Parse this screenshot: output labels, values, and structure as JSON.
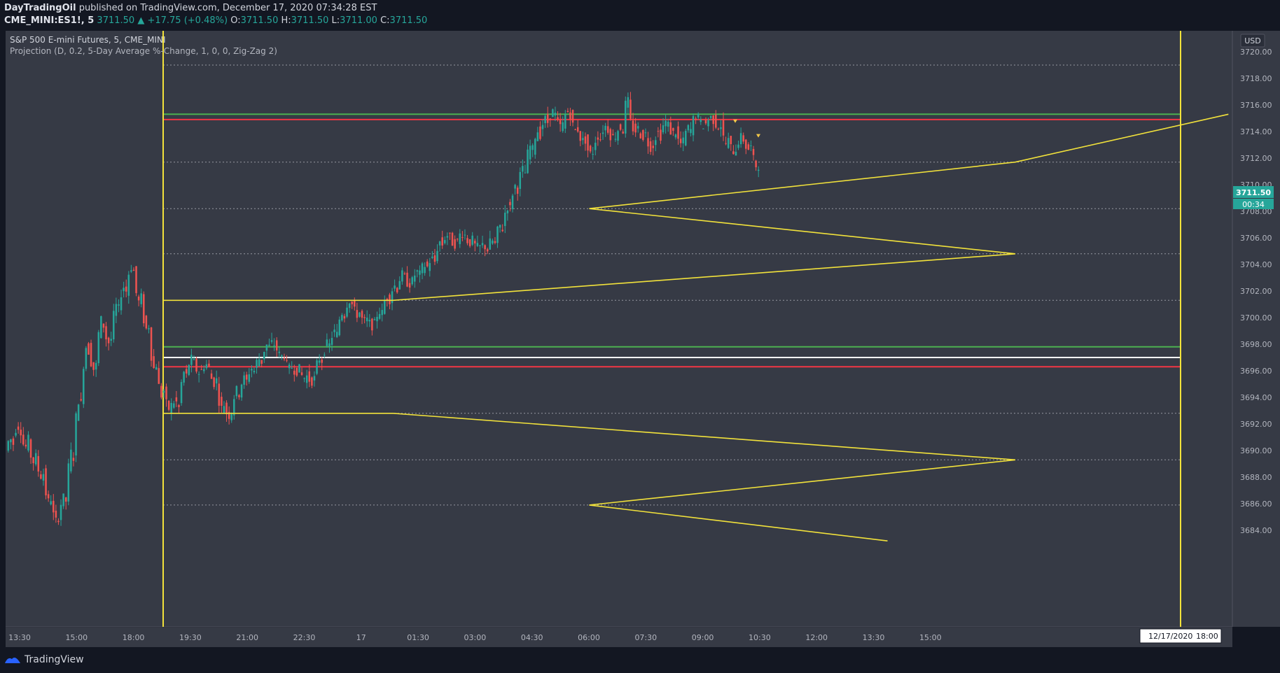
{
  "header": {
    "publisher": "DayTradingOil",
    "published_text": "published on TradingView.com, December 17, 2020 07:34:28 EST",
    "symbol": "CME_MINI:ES1!, 5",
    "last": "3711.50",
    "change": "+17.75 (+0.48%)",
    "o_label": "O:",
    "o_value": "3711.50",
    "h_label": "H:",
    "h_value": "3711.50",
    "l_label": "L:",
    "l_value": "3711.00",
    "c_label": "C:",
    "c_value": "3711.50"
  },
  "legend": {
    "title": "S&P 500 E-mini Futures, 5, CME_MINI",
    "indicator": "Projection (D, 0.2, 5-Day Average %-Change, 1, 0, 0, Zig-Zag 2)"
  },
  "currency": "USD",
  "price_badge": {
    "value": "3711.50",
    "countdown": "00:34"
  },
  "date_badge": {
    "date": "12/17/2020",
    "time": "18:00"
  },
  "footer": {
    "brand": "TradingView"
  },
  "colors": {
    "background": "#363a45",
    "up": "#26a69a",
    "down": "#ef5350",
    "projection": "#f2e23b",
    "green_line": "#4caf50",
    "red_line": "#f23645",
    "white_line": "#ffffff"
  },
  "chart_data": {
    "type": "candlestick",
    "y_ticks": [
      "3720.00",
      "3718.00",
      "3716.00",
      "3714.00",
      "3712.00",
      "3710.00",
      "3708.00",
      "3706.00",
      "3704.00",
      "3702.00",
      "3700.00",
      "3698.00",
      "3696.00",
      "3694.00",
      "3692.00",
      "3690.00",
      "3688.00",
      "3686.00",
      "3684.00"
    ],
    "x_ticks": [
      "13:30",
      "15:00",
      "18:00",
      "19:30",
      "21:00",
      "22:30",
      "17",
      "01:30",
      "03:00",
      "04:30",
      "06:00",
      "07:30",
      "09:00",
      "10:30",
      "12:00",
      "13:30",
      "15:00"
    ],
    "y_range": [
      3683,
      3722
    ],
    "horizontal_levels": {
      "dotted": [
        3719.0,
        3711.7,
        3708.2,
        3704.8,
        3701.3,
        3692.8,
        3689.3,
        3685.9
      ],
      "green": [
        3715.3,
        3697.8
      ],
      "red": [
        3714.9,
        3696.3
      ],
      "white": [
        3697.0
      ]
    },
    "candles_anchor": [
      [
        3690,
        3691,
        3690.5
      ],
      [
        3691,
        3692,
        3691.5
      ],
      [
        3691.5,
        3690,
        3690.8
      ],
      [
        3690.8,
        3689,
        3689.5
      ],
      [
        3689.5,
        3688,
        3688.3
      ],
      [
        3688.3,
        3686,
        3686.4
      ],
      [
        3686.4,
        3684.5,
        3685
      ],
      [
        3685,
        3686.5,
        3686.2
      ],
      [
        3686.2,
        3690,
        3689.5
      ],
      [
        3689.5,
        3694,
        3693.5
      ],
      [
        3693.5,
        3698,
        3697.5
      ],
      [
        3698,
        3696,
        3696.4
      ],
      [
        3696.4,
        3700,
        3699.4
      ],
      [
        3699.4,
        3698,
        3698.4
      ],
      [
        3698.4,
        3701,
        3700.6
      ],
      [
        3700.6,
        3702.5,
        3702
      ],
      [
        3702,
        3704,
        3703.5
      ],
      [
        3703.5,
        3701,
        3701.5
      ],
      [
        3701.5,
        3699,
        3699.4
      ],
      [
        3699.4,
        3696,
        3696.5
      ],
      [
        3696.5,
        3694,
        3694.5
      ],
      [
        3694.5,
        3693,
        3693.4
      ],
      [
        3693.4,
        3693.8,
        3693.2
      ],
      [
        3693.2,
        3696,
        3695.6
      ],
      [
        3695.6,
        3697,
        3696.6
      ],
      [
        3696.6,
        3695.8,
        3696
      ],
      [
        3696,
        3696.6,
        3696.2
      ],
      [
        3696.2,
        3695,
        3695.3
      ],
      [
        3695.3,
        3693,
        3693.5
      ],
      [
        3693.5,
        3692.5,
        3693
      ],
      [
        3693,
        3694.6,
        3694.3
      ],
      [
        3694.3,
        3695.5,
        3695.2
      ],
      [
        3695.2,
        3696.3,
        3696
      ],
      [
        3696,
        3697,
        3696.7
      ],
      [
        3696.7,
        3698,
        3697.8
      ],
      [
        3697.8,
        3698.2,
        3697.6
      ],
      [
        3697.6,
        3697,
        3697.2
      ],
      [
        3697.2,
        3696,
        3696.3
      ],
      [
        3696.3,
        3696,
        3696.1
      ],
      [
        3696.1,
        3695.4,
        3695.6
      ],
      [
        3695.6,
        3695.2,
        3695.4
      ],
      [
        3695.4,
        3697,
        3696.8
      ],
      [
        3696.8,
        3698,
        3697.9
      ],
      [
        3697.9,
        3699,
        3698.7
      ],
      [
        3698.7,
        3700.5,
        3700.2
      ],
      [
        3700.2,
        3701.5,
        3701
      ],
      [
        3701,
        3700.2,
        3700.4
      ],
      [
        3700.4,
        3699.6,
        3699.8
      ],
      [
        3699.8,
        3699.4,
        3699.5
      ],
      [
        3699.5,
        3700.6,
        3700.3
      ],
      [
        3700.3,
        3701.7,
        3701.4
      ],
      [
        3701.4,
        3702.5,
        3702.2
      ],
      [
        3702.2,
        3703.3,
        3703
      ],
      [
        3703,
        3702.5,
        3702.7
      ],
      [
        3702.7,
        3703.5,
        3703.2
      ],
      [
        3703.2,
        3704,
        3703.8
      ],
      [
        3703.8,
        3704.5,
        3704.2
      ],
      [
        3704.2,
        3705.8,
        3705.5
      ],
      [
        3705.5,
        3706.3,
        3706
      ],
      [
        3706,
        3705.5,
        3705.7
      ],
      [
        3705.7,
        3706.5,
        3706.2
      ],
      [
        3706.2,
        3705.6,
        3705.8
      ],
      [
        3705.8,
        3705.2,
        3705.3
      ],
      [
        3705.3,
        3705.5,
        3705.1
      ],
      [
        3705.1,
        3705.9,
        3705.5
      ],
      [
        3705.5,
        3707,
        3706.7
      ],
      [
        3706.7,
        3708.5,
        3708.2
      ],
      [
        3708.2,
        3710,
        3709.7
      ],
      [
        3709.7,
        3711.2,
        3710.9
      ],
      [
        3710.9,
        3713,
        3712.6
      ],
      [
        3712.6,
        3714.2,
        3713.8
      ],
      [
        3713.8,
        3715,
        3714.7
      ],
      [
        3714.7,
        3715.6,
        3715.2
      ],
      [
        3715.2,
        3714.3,
        3714.5
      ],
      [
        3714.5,
        3715.6,
        3715.3
      ],
      [
        3715.3,
        3714,
        3714.2
      ],
      [
        3714.2,
        3713.2,
        3713.4
      ],
      [
        3713.4,
        3712.2,
        3712.5
      ],
      [
        3712.5,
        3713.8,
        3713.5
      ],
      [
        3713.5,
        3714.5,
        3714.2
      ],
      [
        3714.2,
        3713.5,
        3713.7
      ],
      [
        3713.7,
        3714.4,
        3714.1
      ],
      [
        3714.1,
        3717,
        3714.7
      ],
      [
        3714.7,
        3714,
        3714.2
      ],
      [
        3714.2,
        3713.6,
        3713.8
      ],
      [
        3713.8,
        3712.8,
        3713
      ],
      [
        3713,
        3714,
        3713.7
      ],
      [
        3713.7,
        3714.8,
        3714.5
      ],
      [
        3714.5,
        3713.8,
        3714
      ],
      [
        3714,
        3713,
        3713.2
      ],
      [
        3713.2,
        3714.3,
        3714.1
      ],
      [
        3714.1,
        3715.3,
        3715
      ],
      [
        3715,
        3714.4,
        3714.6
      ],
      [
        3714.6,
        3715.1,
        3714.9
      ],
      [
        3714.9,
        3714.4,
        3714.5
      ],
      [
        3714.5,
        3713,
        3713.3
      ],
      [
        3713.3,
        3712.5,
        3712.7
      ],
      [
        3712.7,
        3713.6,
        3713.4
      ],
      [
        3713.4,
        3712.6,
        3712.8
      ],
      [
        3712.8,
        3711.4,
        3711.5
      ]
    ],
    "projection_lines": [
      [
        [
          0,
          3701.3
        ],
        [
          0.27,
          3701.3
        ],
        [
          1.0,
          3704.8
        ],
        [
          0.5,
          3708.2
        ],
        [
          1.0,
          3711.7
        ],
        [
          1.25,
          3715.3
        ]
      ],
      [
        [
          0,
          3692.8
        ],
        [
          0.27,
          3692.8
        ],
        [
          1.0,
          3689.3
        ],
        [
          0.5,
          3685.9
        ],
        [
          0.85,
          3683.2
        ]
      ]
    ]
  }
}
